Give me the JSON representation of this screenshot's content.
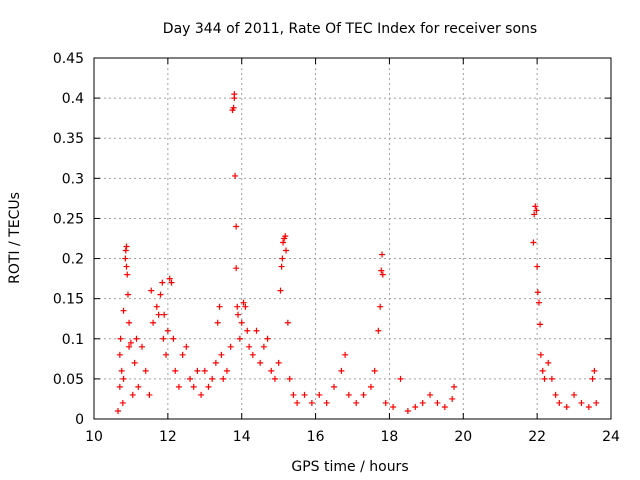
{
  "chart_data": {
    "type": "scatter",
    "title": "Day 344 of 2011, Rate Of TEC Index for receiver sons",
    "xlabel": "GPS time / hours",
    "ylabel": "ROTI / TECUs",
    "xlim": [
      10,
      24
    ],
    "ylim": [
      0,
      0.45
    ],
    "xticks": [
      10,
      12,
      14,
      16,
      18,
      20,
      22,
      24
    ],
    "yticks": [
      0,
      0.05,
      0.1,
      0.15,
      0.2,
      0.25,
      0.3,
      0.35,
      0.4,
      0.45
    ],
    "xtick_labels": [
      "10",
      "12",
      "14",
      "16",
      "18",
      "20",
      "22",
      "24"
    ],
    "ytick_labels": [
      "0",
      "0.05",
      "0.1",
      "0.15",
      "0.2",
      "0.25",
      "0.3",
      "0.35",
      "0.4",
      "0.45"
    ],
    "grid": true,
    "marker": "plus",
    "color": "#ff0000",
    "series": [
      {
        "points": [
          [
            10.65,
            0.01
          ],
          [
            10.7,
            0.04
          ],
          [
            10.7,
            0.08
          ],
          [
            10.72,
            0.1
          ],
          [
            10.75,
            0.06
          ],
          [
            10.78,
            0.02
          ],
          [
            10.8,
            0.05
          ],
          [
            10.8,
            0.135
          ],
          [
            10.85,
            0.2
          ],
          [
            10.86,
            0.21
          ],
          [
            10.88,
            0.215
          ],
          [
            10.88,
            0.19
          ],
          [
            10.9,
            0.18
          ],
          [
            10.92,
            0.155
          ],
          [
            10.95,
            0.12
          ],
          [
            10.95,
            0.09
          ],
          [
            11.0,
            0.095
          ],
          [
            11.05,
            0.03
          ],
          [
            11.1,
            0.07
          ],
          [
            11.15,
            0.1
          ],
          [
            11.2,
            0.04
          ],
          [
            11.3,
            0.09
          ],
          [
            11.4,
            0.06
          ],
          [
            11.5,
            0.03
          ],
          [
            11.55,
            0.16
          ],
          [
            11.6,
            0.12
          ],
          [
            11.7,
            0.14
          ],
          [
            11.75,
            0.13
          ],
          [
            11.8,
            0.155
          ],
          [
            11.85,
            0.17
          ],
          [
            11.88,
            0.1
          ],
          [
            11.9,
            0.13
          ],
          [
            11.95,
            0.08
          ],
          [
            12.0,
            0.11
          ],
          [
            12.05,
            0.175
          ],
          [
            12.1,
            0.17
          ],
          [
            12.15,
            0.1
          ],
          [
            12.2,
            0.06
          ],
          [
            12.3,
            0.04
          ],
          [
            12.4,
            0.08
          ],
          [
            12.5,
            0.09
          ],
          [
            12.6,
            0.05
          ],
          [
            12.7,
            0.04
          ],
          [
            12.8,
            0.06
          ],
          [
            12.9,
            0.03
          ],
          [
            13.0,
            0.06
          ],
          [
            13.1,
            0.04
          ],
          [
            13.2,
            0.05
          ],
          [
            13.3,
            0.07
          ],
          [
            13.35,
            0.12
          ],
          [
            13.4,
            0.14
          ],
          [
            13.45,
            0.08
          ],
          [
            13.5,
            0.05
          ],
          [
            13.6,
            0.06
          ],
          [
            13.7,
            0.09
          ],
          [
            13.75,
            0.385
          ],
          [
            13.78,
            0.388
          ],
          [
            13.8,
            0.405
          ],
          [
            13.8,
            0.4
          ],
          [
            13.82,
            0.303
          ],
          [
            13.85,
            0.24
          ],
          [
            13.85,
            0.188
          ],
          [
            13.88,
            0.14
          ],
          [
            13.9,
            0.13
          ],
          [
            13.95,
            0.1
          ],
          [
            14.0,
            0.12
          ],
          [
            14.05,
            0.145
          ],
          [
            14.1,
            0.14
          ],
          [
            14.15,
            0.11
          ],
          [
            14.2,
            0.09
          ],
          [
            14.3,
            0.08
          ],
          [
            14.4,
            0.11
          ],
          [
            14.5,
            0.07
          ],
          [
            14.6,
            0.09
          ],
          [
            14.7,
            0.1
          ],
          [
            14.8,
            0.06
          ],
          [
            14.9,
            0.05
          ],
          [
            15.0,
            0.07
          ],
          [
            15.05,
            0.16
          ],
          [
            15.08,
            0.19
          ],
          [
            15.1,
            0.2
          ],
          [
            15.12,
            0.22
          ],
          [
            15.15,
            0.225
          ],
          [
            15.18,
            0.228
          ],
          [
            15.2,
            0.21
          ],
          [
            15.25,
            0.12
          ],
          [
            15.3,
            0.05
          ],
          [
            15.4,
            0.03
          ],
          [
            15.5,
            0.02
          ],
          [
            15.7,
            0.03
          ],
          [
            15.9,
            0.02
          ],
          [
            16.1,
            0.03
          ],
          [
            16.3,
            0.02
          ],
          [
            16.5,
            0.04
          ],
          [
            16.7,
            0.06
          ],
          [
            16.8,
            0.08
          ],
          [
            16.9,
            0.03
          ],
          [
            17.1,
            0.02
          ],
          [
            17.3,
            0.03
          ],
          [
            17.5,
            0.04
          ],
          [
            17.6,
            0.06
          ],
          [
            17.7,
            0.11
          ],
          [
            17.75,
            0.14
          ],
          [
            17.78,
            0.185
          ],
          [
            17.8,
            0.205
          ],
          [
            17.82,
            0.18
          ],
          [
            17.9,
            0.02
          ],
          [
            18.1,
            0.015
          ],
          [
            18.3,
            0.05
          ],
          [
            18.5,
            0.01
          ],
          [
            18.7,
            0.015
          ],
          [
            18.9,
            0.02
          ],
          [
            19.1,
            0.03
          ],
          [
            19.3,
            0.02
          ],
          [
            19.5,
            0.015
          ],
          [
            19.7,
            0.025
          ],
          [
            19.75,
            0.04
          ],
          [
            21.9,
            0.22
          ],
          [
            21.92,
            0.255
          ],
          [
            21.95,
            0.265
          ],
          [
            21.98,
            0.26
          ],
          [
            22.0,
            0.19
          ],
          [
            22.02,
            0.158
          ],
          [
            22.05,
            0.145
          ],
          [
            22.08,
            0.118
          ],
          [
            22.1,
            0.08
          ],
          [
            22.15,
            0.06
          ],
          [
            22.2,
            0.05
          ],
          [
            22.3,
            0.07
          ],
          [
            22.4,
            0.05
          ],
          [
            22.5,
            0.03
          ],
          [
            22.6,
            0.02
          ],
          [
            22.8,
            0.015
          ],
          [
            23.0,
            0.03
          ],
          [
            23.2,
            0.02
          ],
          [
            23.4,
            0.015
          ],
          [
            23.5,
            0.05
          ],
          [
            23.55,
            0.06
          ],
          [
            23.6,
            0.02
          ]
        ]
      }
    ]
  }
}
